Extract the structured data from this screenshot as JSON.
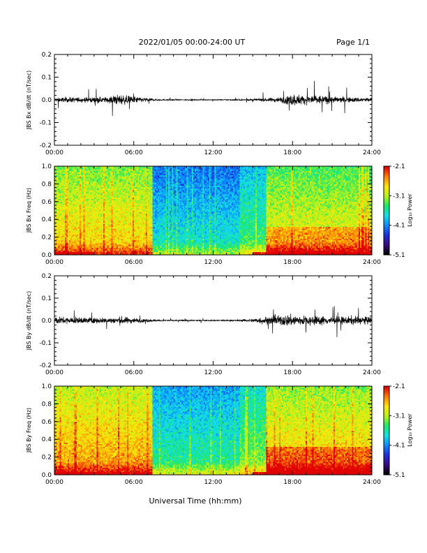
{
  "header": {
    "date_range": "2022/01/05  00:00-24:00 UT",
    "page": "Page 1/1"
  },
  "x_axis_title": "Universal Time (hh:mm)",
  "colors": {
    "trace": "#000000",
    "colormap": [
      "#000000",
      "#3a0a82",
      "#1f2fd9",
      "#0a8cff",
      "#14e0e8",
      "#19e86a",
      "#b6f21a",
      "#ffe60a",
      "#ff8000",
      "#e00000"
    ]
  },
  "chart_data": [
    {
      "type": "line",
      "panel": "bx-derivative",
      "ylabel": "JBS Bx dB/dt (nT/sec)",
      "ylim": [
        -0.2,
        0.2
      ],
      "yticks": [
        "0.2",
        "0.1",
        "0.0",
        "-0.1",
        "-0.2"
      ],
      "xlim": [
        0,
        24
      ],
      "xticks": [
        "00:00",
        "06:00",
        "12:00",
        "18:00",
        "24:00"
      ],
      "grid": false,
      "series": [
        {
          "x": [
            0,
            1,
            2,
            3,
            4,
            4.5,
            5,
            5.5,
            6,
            6.5,
            7,
            7.5,
            8,
            9,
            10,
            11,
            12,
            13,
            14,
            15,
            16,
            17,
            17.5,
            18,
            18.5,
            19,
            19.5,
            20,
            21,
            22,
            23,
            24
          ],
          "envelope": [
            0.015,
            0.02,
            0.018,
            0.02,
            0.022,
            0.035,
            0.04,
            0.03,
            0.028,
            0.02,
            0.015,
            0.008,
            0.005,
            0.004,
            0.004,
            0.003,
            0.003,
            0.004,
            0.005,
            0.008,
            0.012,
            0.02,
            0.03,
            0.045,
            0.04,
            0.03,
            0.04,
            0.035,
            0.025,
            0.02,
            0.018,
            0.015
          ]
        }
      ]
    },
    {
      "type": "heatmap",
      "panel": "bx-spectrogram",
      "ylabel": "JBS Bx Freq (Hz)",
      "ylim": [
        0.0,
        1.0
      ],
      "yticks": [
        "1.0",
        "0.8",
        "0.6",
        "0.4",
        "0.2",
        "0.0"
      ],
      "xlim": [
        0,
        24
      ],
      "xticks": [
        "00:00",
        "06:00",
        "12:00",
        "18:00",
        "24:00"
      ],
      "colorbar_label": "Log₁₀ Power",
      "colorbar_range": [
        -5.1,
        -2.1
      ],
      "colorbar_ticks": [
        "-2.1",
        "-3.1",
        "-4.1",
        "-5.1"
      ]
    },
    {
      "type": "line",
      "panel": "by-derivative",
      "ylabel": "JBS By dB/dt (nT/sec)",
      "ylim": [
        -0.2,
        0.2
      ],
      "yticks": [
        "0.2",
        "0.1",
        "0.0",
        "-0.1",
        "-0.2"
      ],
      "xlim": [
        0,
        24
      ],
      "xticks": [
        "00:00",
        "06:00",
        "12:00",
        "18:00",
        "24:00"
      ],
      "grid": false,
      "series": [
        {
          "x": [
            0,
            1,
            2,
            3,
            4,
            4.5,
            5,
            5.5,
            6,
            6.5,
            7,
            7.5,
            8,
            9,
            10,
            11,
            12,
            13,
            14,
            15,
            15.5,
            16,
            17,
            17.5,
            18,
            18.5,
            19,
            20,
            21,
            22,
            23,
            24
          ],
          "envelope": [
            0.03,
            0.025,
            0.025,
            0.022,
            0.02,
            0.025,
            0.03,
            0.025,
            0.02,
            0.015,
            0.012,
            0.008,
            0.005,
            0.005,
            0.004,
            0.004,
            0.004,
            0.005,
            0.006,
            0.015,
            0.025,
            0.03,
            0.035,
            0.045,
            0.045,
            0.04,
            0.035,
            0.035,
            0.03,
            0.03,
            0.035,
            0.025
          ]
        }
      ]
    },
    {
      "type": "heatmap",
      "panel": "by-spectrogram",
      "ylabel": "JBS By Freq (Hz)",
      "ylim": [
        0.0,
        1.0
      ],
      "yticks": [
        "1.0",
        "0.8",
        "0.6",
        "0.4",
        "0.2",
        "0.0"
      ],
      "xlim": [
        0,
        24
      ],
      "xticks": [
        "00:00",
        "06:00",
        "12:00",
        "18:00",
        "24:00"
      ],
      "colorbar_label": "Log₁₀ Power",
      "colorbar_range": [
        -5.1,
        -2.1
      ],
      "colorbar_ticks": [
        "-2.1",
        "-3.1",
        "-4.1",
        "-5.1"
      ]
    }
  ]
}
